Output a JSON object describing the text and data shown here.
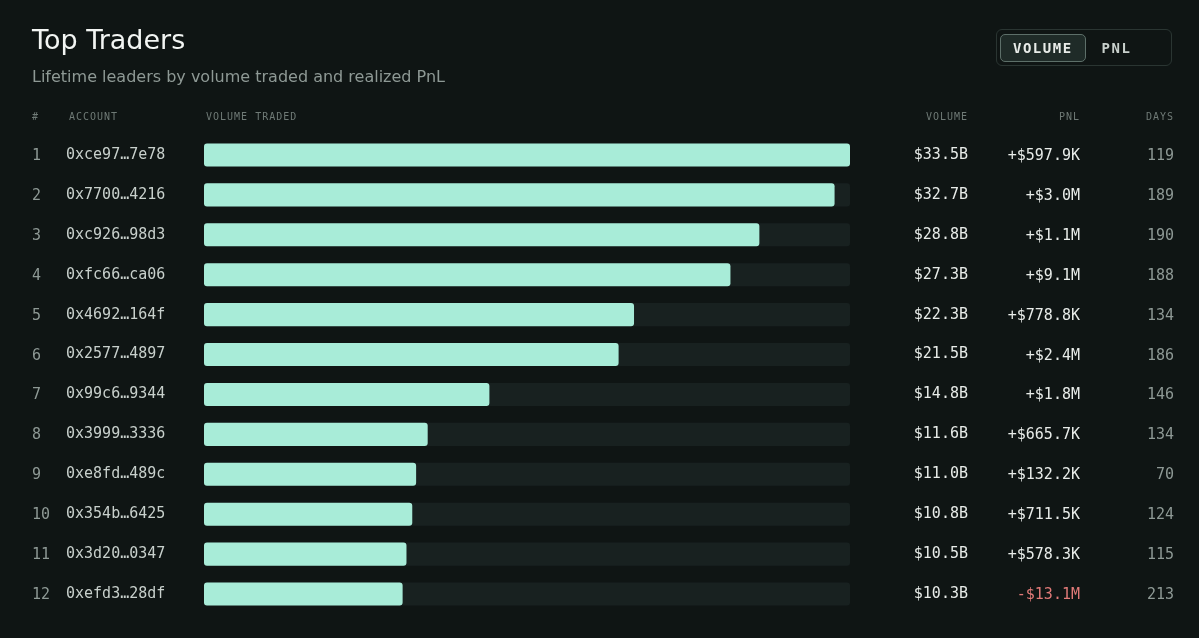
{
  "chart_data": [
    {
      "type": "bar",
      "orientation": "horizontal",
      "title": "Top Traders",
      "subtitle": "Lifetime leaders by volume traded and realized PnL",
      "xlabel": "VOLUME TRADED",
      "ylabel": "ACCOUNT",
      "categories": [
        "0xce97…7e78",
        "0x7700…4216",
        "0xc926…98d3",
        "0xfc66…ca06",
        "0x4692…164f",
        "0x2577…4897",
        "0x99c6…9344",
        "0x3999…3336",
        "0xe8fd…489c",
        "0x354b…6425",
        "0x3d20…0347",
        "0xefd3…28df"
      ],
      "values": [
        33.5,
        32.7,
        28.8,
        27.3,
        22.3,
        21.5,
        14.8,
        11.6,
        11.0,
        10.8,
        10.5,
        10.3
      ],
      "value_labels": [
        "$33.5B",
        "$32.7B",
        "$28.8B",
        "$27.3B",
        "$22.3B",
        "$21.5B",
        "$14.8B",
        "$11.6B",
        "$11.0B",
        "$10.8B",
        "$10.5B",
        "$10.3B"
      ],
      "color": "#a8ecd8",
      "xlim": [
        0,
        33.5
      ],
      "tick_labels": "y",
      "annotations": [
        "VOLUME",
        "PNL",
        "VOLUME"
      ]
    },
    {
      "type": "other",
      "title": "#",
      "values": [
        1,
        2,
        3,
        4,
        5,
        6,
        7,
        8,
        9,
        10,
        11,
        12
      ],
      "data_labels": true
    },
    {
      "type": "other",
      "title": "PNL",
      "value_labels": [
        "+$597.9K",
        "+$3.0M",
        "+$1.1M",
        "+$9.1M",
        "+$778.8K",
        "+$2.4M",
        "+$1.8M",
        "+$665.7K",
        "+$132.2K",
        "+$711.5K",
        "+$578.3K",
        "-$13.1M"
      ],
      "colors": [
        "#e8ece9",
        "#e8ece9",
        "#e8ece9",
        "#e8ece9",
        "#e8ece9",
        "#e8ece9",
        "#e8ece9",
        "#e8ece9",
        "#e8ece9",
        "#e8ece9",
        "#e8ece9",
        "#e07a78"
      ]
    },
    {
      "type": "other",
      "title": "DAYS",
      "values": [
        119,
        189,
        190,
        188,
        134,
        186,
        146,
        134,
        70,
        124,
        115,
        213
      ],
      "data_labels": true
    }
  ]
}
